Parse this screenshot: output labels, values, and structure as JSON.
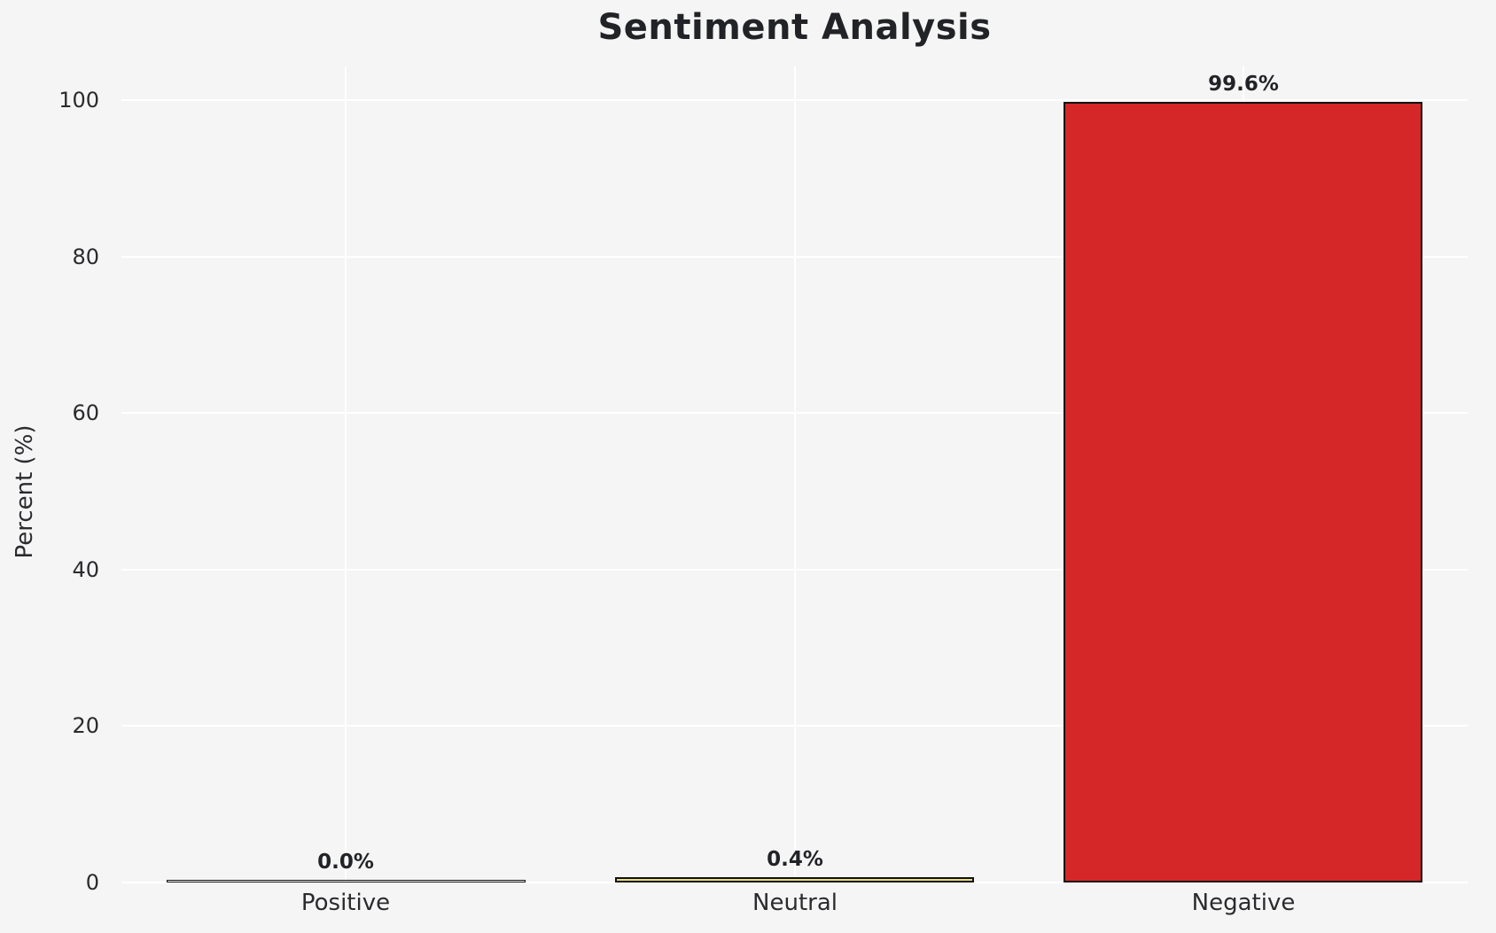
{
  "chart_data": {
    "type": "bar",
    "title": "Sentiment Analysis",
    "xlabel": "",
    "ylabel": "Percent (%)",
    "categories": [
      "Positive",
      "Neutral",
      "Negative"
    ],
    "values": [
      0.0,
      0.4,
      99.6
    ],
    "value_labels": [
      "0.0%",
      "0.4%",
      "99.6%"
    ],
    "yticks": [
      0,
      20,
      40,
      60,
      80,
      100
    ],
    "ylim": [
      0,
      104
    ],
    "grid": "on",
    "legend": "none",
    "colors": {
      "background": "#f5f5f6",
      "gridline": "#ffffff",
      "bar_edge": "#111111",
      "bar_fills": [
        null,
        "#e8de7a",
        "#d62728"
      ],
      "text": "#222326"
    }
  }
}
